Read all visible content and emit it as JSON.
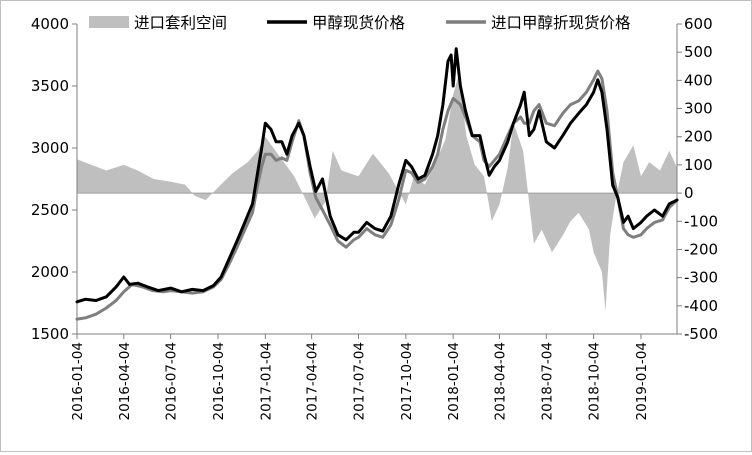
{
  "chart_data": {
    "type": "line",
    "legend": {
      "placement": "top",
      "items": [
        {
          "name": "进口套利空间",
          "kind": "area",
          "color": "#bfbfbf"
        },
        {
          "name": "甲醇现货价格",
          "kind": "line",
          "color": "#000000"
        },
        {
          "name": "进口甲醇折现货价格",
          "kind": "line",
          "color": "#7f7f7f"
        }
      ]
    },
    "y_left": {
      "min": 1500,
      "max": 4000,
      "step": 500,
      "ticks": [
        "1500",
        "2000",
        "2500",
        "3000",
        "3500",
        "4000"
      ]
    },
    "y_right": {
      "min": -500,
      "max": 600,
      "step": 100,
      "ticks": [
        "-500",
        "-400",
        "-300",
        "-200",
        "-100",
        "0",
        "100",
        "200",
        "300",
        "400",
        "500",
        "600"
      ]
    },
    "x_range": [
      "2016-01-04",
      "2019-03-15"
    ],
    "x_ticks": [
      "2016-01-04",
      "2016-04-04",
      "2016-07-04",
      "2016-10-04",
      "2017-01-04",
      "2017-04-04",
      "2017-07-04",
      "2017-10-04",
      "2018-01-04",
      "2018-04-04",
      "2018-07-04",
      "2018-10-04",
      "2019-01-04"
    ],
    "grid": false,
    "series": [
      {
        "name": "甲醇现货价格",
        "axis": "left",
        "color": "#000000",
        "points": [
          [
            "2016-01-04",
            1760
          ],
          [
            "2016-01-20",
            1780
          ],
          [
            "2016-02-10",
            1770
          ],
          [
            "2016-03-01",
            1800
          ],
          [
            "2016-03-20",
            1880
          ],
          [
            "2016-04-04",
            1960
          ],
          [
            "2016-04-15",
            1900
          ],
          [
            "2016-05-01",
            1910
          ],
          [
            "2016-05-20",
            1880
          ],
          [
            "2016-06-10",
            1850
          ],
          [
            "2016-07-04",
            1870
          ],
          [
            "2016-07-25",
            1840
          ],
          [
            "2016-08-15",
            1860
          ],
          [
            "2016-09-05",
            1850
          ],
          [
            "2016-09-25",
            1890
          ],
          [
            "2016-10-10",
            1960
          ],
          [
            "2016-10-25",
            2100
          ],
          [
            "2016-11-10",
            2250
          ],
          [
            "2016-11-25",
            2400
          ],
          [
            "2016-12-10",
            2550
          ],
          [
            "2016-12-20",
            2800
          ],
          [
            "2016-12-28",
            3000
          ],
          [
            "2017-01-04",
            3200
          ],
          [
            "2017-01-15",
            3150
          ],
          [
            "2017-01-25",
            3050
          ],
          [
            "2017-02-05",
            3050
          ],
          [
            "2017-02-15",
            2950
          ],
          [
            "2017-02-25",
            3100
          ],
          [
            "2017-03-10",
            3200
          ],
          [
            "2017-03-20",
            3100
          ],
          [
            "2017-04-01",
            2850
          ],
          [
            "2017-04-12",
            2650
          ],
          [
            "2017-04-25",
            2750
          ],
          [
            "2017-05-10",
            2450
          ],
          [
            "2017-05-25",
            2300
          ],
          [
            "2017-06-10",
            2260
          ],
          [
            "2017-06-25",
            2320
          ],
          [
            "2017-07-04",
            2320
          ],
          [
            "2017-07-20",
            2400
          ],
          [
            "2017-08-05",
            2350
          ],
          [
            "2017-08-20",
            2330
          ],
          [
            "2017-09-05",
            2450
          ],
          [
            "2017-09-20",
            2700
          ],
          [
            "2017-10-04",
            2900
          ],
          [
            "2017-10-15",
            2850
          ],
          [
            "2017-10-28",
            2750
          ],
          [
            "2017-11-10",
            2780
          ],
          [
            "2017-11-25",
            2950
          ],
          [
            "2017-12-05",
            3100
          ],
          [
            "2017-12-15",
            3350
          ],
          [
            "2017-12-25",
            3700
          ],
          [
            "2017-12-31",
            3750
          ],
          [
            "2018-01-04",
            3500
          ],
          [
            "2018-01-10",
            3800
          ],
          [
            "2018-01-18",
            3500
          ],
          [
            "2018-01-28",
            3300
          ],
          [
            "2018-02-10",
            3100
          ],
          [
            "2018-02-25",
            3100
          ],
          [
            "2018-03-05",
            2950
          ],
          [
            "2018-03-15",
            2780
          ],
          [
            "2018-03-25",
            2850
          ],
          [
            "2018-04-04",
            2900
          ],
          [
            "2018-04-20",
            3050
          ],
          [
            "2018-05-01",
            3200
          ],
          [
            "2018-05-15",
            3350
          ],
          [
            "2018-05-22",
            3450
          ],
          [
            "2018-06-01",
            3100
          ],
          [
            "2018-06-10",
            3150
          ],
          [
            "2018-06-20",
            3300
          ],
          [
            "2018-07-04",
            3050
          ],
          [
            "2018-07-20",
            3000
          ],
          [
            "2018-08-05",
            3100
          ],
          [
            "2018-08-20",
            3200
          ],
          [
            "2018-09-05",
            3280
          ],
          [
            "2018-09-20",
            3350
          ],
          [
            "2018-10-04",
            3450
          ],
          [
            "2018-10-12",
            3550
          ],
          [
            "2018-10-20",
            3450
          ],
          [
            "2018-10-30",
            3150
          ],
          [
            "2018-11-10",
            2700
          ],
          [
            "2018-11-20",
            2600
          ],
          [
            "2018-12-01",
            2400
          ],
          [
            "2018-12-10",
            2450
          ],
          [
            "2018-12-20",
            2350
          ],
          [
            "2019-01-04",
            2400
          ],
          [
            "2019-01-15",
            2450
          ],
          [
            "2019-01-30",
            2500
          ],
          [
            "2019-02-15",
            2450
          ],
          [
            "2019-02-28",
            2550
          ],
          [
            "2019-03-15",
            2580
          ]
        ]
      },
      {
        "name": "进口甲醇折现货价格",
        "axis": "left",
        "color": "#7f7f7f",
        "points": [
          [
            "2016-01-04",
            1620
          ],
          [
            "2016-01-20",
            1630
          ],
          [
            "2016-02-10",
            1660
          ],
          [
            "2016-03-01",
            1710
          ],
          [
            "2016-03-20",
            1770
          ],
          [
            "2016-04-04",
            1840
          ],
          [
            "2016-04-20",
            1900
          ],
          [
            "2016-05-10",
            1880
          ],
          [
            "2016-05-30",
            1850
          ],
          [
            "2016-06-20",
            1840
          ],
          [
            "2016-07-04",
            1850
          ],
          [
            "2016-07-25",
            1840
          ],
          [
            "2016-08-15",
            1830
          ],
          [
            "2016-09-05",
            1840
          ],
          [
            "2016-09-25",
            1880
          ],
          [
            "2016-10-10",
            1940
          ],
          [
            "2016-10-25",
            2060
          ],
          [
            "2016-11-10",
            2200
          ],
          [
            "2016-11-25",
            2340
          ],
          [
            "2016-12-10",
            2480
          ],
          [
            "2016-12-20",
            2700
          ],
          [
            "2016-12-28",
            2850
          ],
          [
            "2017-01-04",
            2950
          ],
          [
            "2017-01-15",
            2950
          ],
          [
            "2017-01-25",
            2900
          ],
          [
            "2017-02-05",
            2920
          ],
          [
            "2017-02-15",
            2900
          ],
          [
            "2017-02-25",
            3050
          ],
          [
            "2017-03-10",
            3220
          ],
          [
            "2017-03-20",
            3100
          ],
          [
            "2017-04-01",
            2800
          ],
          [
            "2017-04-12",
            2600
          ],
          [
            "2017-04-25",
            2500
          ],
          [
            "2017-05-10",
            2380
          ],
          [
            "2017-05-25",
            2250
          ],
          [
            "2017-06-10",
            2200
          ],
          [
            "2017-06-25",
            2260
          ],
          [
            "2017-07-04",
            2280
          ],
          [
            "2017-07-20",
            2350
          ],
          [
            "2017-08-05",
            2300
          ],
          [
            "2017-08-20",
            2280
          ],
          [
            "2017-09-05",
            2380
          ],
          [
            "2017-09-20",
            2580
          ],
          [
            "2017-10-04",
            2820
          ],
          [
            "2017-10-15",
            2800
          ],
          [
            "2017-10-28",
            2720
          ],
          [
            "2017-11-10",
            2750
          ],
          [
            "2017-11-25",
            2850
          ],
          [
            "2017-12-05",
            2950
          ],
          [
            "2017-12-15",
            3150
          ],
          [
            "2017-12-25",
            3300
          ],
          [
            "2018-01-04",
            3400
          ],
          [
            "2018-01-18",
            3350
          ],
          [
            "2018-01-28",
            3250
          ],
          [
            "2018-02-10",
            3100
          ],
          [
            "2018-02-25",
            3050
          ],
          [
            "2018-03-05",
            2900
          ],
          [
            "2018-03-15",
            2850
          ],
          [
            "2018-03-25",
            2900
          ],
          [
            "2018-04-04",
            2950
          ],
          [
            "2018-04-20",
            3100
          ],
          [
            "2018-05-01",
            3200
          ],
          [
            "2018-05-15",
            3250
          ],
          [
            "2018-05-22",
            3200
          ],
          [
            "2018-06-01",
            3200
          ],
          [
            "2018-06-10",
            3300
          ],
          [
            "2018-06-20",
            3350
          ],
          [
            "2018-07-04",
            3200
          ],
          [
            "2018-07-20",
            3180
          ],
          [
            "2018-08-05",
            3280
          ],
          [
            "2018-08-20",
            3350
          ],
          [
            "2018-09-05",
            3380
          ],
          [
            "2018-09-20",
            3450
          ],
          [
            "2018-10-04",
            3550
          ],
          [
            "2018-10-12",
            3620
          ],
          [
            "2018-10-20",
            3560
          ],
          [
            "2018-10-30",
            3300
          ],
          [
            "2018-11-10",
            2800
          ],
          [
            "2018-11-20",
            2600
          ],
          [
            "2018-12-01",
            2350
          ],
          [
            "2018-12-10",
            2300
          ],
          [
            "2018-12-20",
            2280
          ],
          [
            "2019-01-04",
            2300
          ],
          [
            "2019-01-15",
            2350
          ],
          [
            "2019-01-30",
            2400
          ],
          [
            "2019-02-15",
            2420
          ],
          [
            "2019-02-28",
            2520
          ],
          [
            "2019-03-15",
            2580
          ]
        ]
      },
      {
        "name": "进口套利空间",
        "axis": "right",
        "kind": "area",
        "color": "#bfbfbf",
        "points": [
          [
            "2016-01-04",
            120
          ],
          [
            "2016-02-01",
            100
          ],
          [
            "2016-03-01",
            80
          ],
          [
            "2016-04-04",
            100
          ],
          [
            "2016-05-01",
            80
          ],
          [
            "2016-06-01",
            50
          ],
          [
            "2016-07-04",
            40
          ],
          [
            "2016-08-01",
            30
          ],
          [
            "2016-08-20",
            -10
          ],
          [
            "2016-09-10",
            -25
          ],
          [
            "2016-10-04",
            20
          ],
          [
            "2016-11-01",
            70
          ],
          [
            "2016-12-01",
            110
          ],
          [
            "2016-12-20",
            150
          ],
          [
            "2017-01-04",
            200
          ],
          [
            "2017-02-01",
            130
          ],
          [
            "2017-03-01",
            60
          ],
          [
            "2017-03-20",
            -10
          ],
          [
            "2017-04-10",
            -90
          ],
          [
            "2017-05-01",
            -30
          ],
          [
            "2017-05-15",
            150
          ],
          [
            "2017-06-01",
            80
          ],
          [
            "2017-07-04",
            60
          ],
          [
            "2017-08-01",
            140
          ],
          [
            "2017-09-01",
            70
          ],
          [
            "2017-10-04",
            -40
          ],
          [
            "2017-10-20",
            60
          ],
          [
            "2017-11-10",
            30
          ],
          [
            "2017-12-01",
            110
          ],
          [
            "2017-12-20",
            190
          ],
          [
            "2018-01-04",
            350
          ],
          [
            "2018-01-15",
            420
          ],
          [
            "2018-01-30",
            200
          ],
          [
            "2018-02-15",
            100
          ],
          [
            "2018-03-05",
            60
          ],
          [
            "2018-03-20",
            -100
          ],
          [
            "2018-04-04",
            -40
          ],
          [
            "2018-04-20",
            90
          ],
          [
            "2018-05-01",
            250
          ],
          [
            "2018-05-20",
            150
          ],
          [
            "2018-06-10",
            -180
          ],
          [
            "2018-06-25",
            -130
          ],
          [
            "2018-07-15",
            -210
          ],
          [
            "2018-08-05",
            -150
          ],
          [
            "2018-08-20",
            -100
          ],
          [
            "2018-09-05",
            -70
          ],
          [
            "2018-09-25",
            -130
          ],
          [
            "2018-10-04",
            -210
          ],
          [
            "2018-10-20",
            -280
          ],
          [
            "2018-10-27",
            -420
          ],
          [
            "2018-11-05",
            -150
          ],
          [
            "2018-11-15",
            -30
          ],
          [
            "2018-12-01",
            110
          ],
          [
            "2018-12-20",
            170
          ],
          [
            "2019-01-04",
            60
          ],
          [
            "2019-01-20",
            110
          ],
          [
            "2019-02-10",
            80
          ],
          [
            "2019-02-28",
            150
          ],
          [
            "2019-03-15",
            90
          ]
        ]
      }
    ]
  }
}
